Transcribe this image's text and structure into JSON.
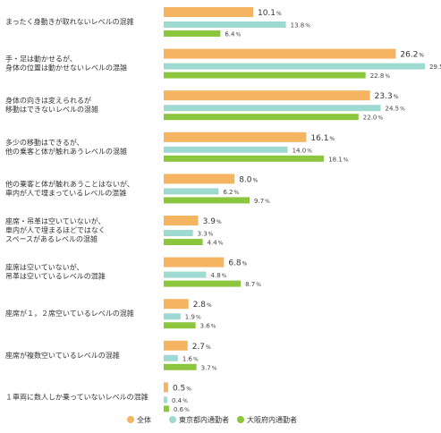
{
  "chart_data": {
    "type": "bar",
    "orientation": "horizontal",
    "categories": [
      [
        "まったく身動きが取れないレベルの混雑"
      ],
      [
        "手・足は動かせるが、",
        "身体の位置は動かせないレベルの混雑"
      ],
      [
        "身体の向きは変えられるが",
        "移動はできないレベルの混雑"
      ],
      [
        "多少の移動はできるが、",
        "他の乗客と体が触れあうレベルの混雑"
      ],
      [
        "他の乗客と体が触れあうことはないが、",
        "車内が人で埋まっているレベルの混雑"
      ],
      [
        "座席・吊革は空いていないが、",
        "車内が人で埋まるほどではなく",
        "スペースがあるレベルの混雑"
      ],
      [
        "座席は空いていないが、",
        "吊革は空いているレベルの混雑"
      ],
      [
        "座席が１，２席空いているレベルの混雑"
      ],
      [
        "座席が複数空いているレベルの混雑"
      ],
      [
        "１車両に数人しか乗っていないレベルの混雑"
      ]
    ],
    "series": [
      {
        "name": "全体",
        "color": "#f5b461",
        "values": [
          10.1,
          26.2,
          23.3,
          16.1,
          8.0,
          3.9,
          6.8,
          2.8,
          2.7,
          0.5
        ]
      },
      {
        "name": "東京都内通勤者",
        "color": "#9fdad2",
        "values": [
          13.8,
          29.5,
          24.5,
          14.0,
          6.2,
          3.3,
          4.8,
          1.9,
          1.6,
          0.4
        ]
      },
      {
        "name": "大阪府内通勤者",
        "color": "#8cc63f",
        "values": [
          6.4,
          22.8,
          22.0,
          18.1,
          9.7,
          4.4,
          8.7,
          3.6,
          3.7,
          0.6
        ]
      }
    ],
    "unit": "%",
    "xlim": [
      0,
      30
    ],
    "grid": false,
    "legend_position": "bottom"
  }
}
